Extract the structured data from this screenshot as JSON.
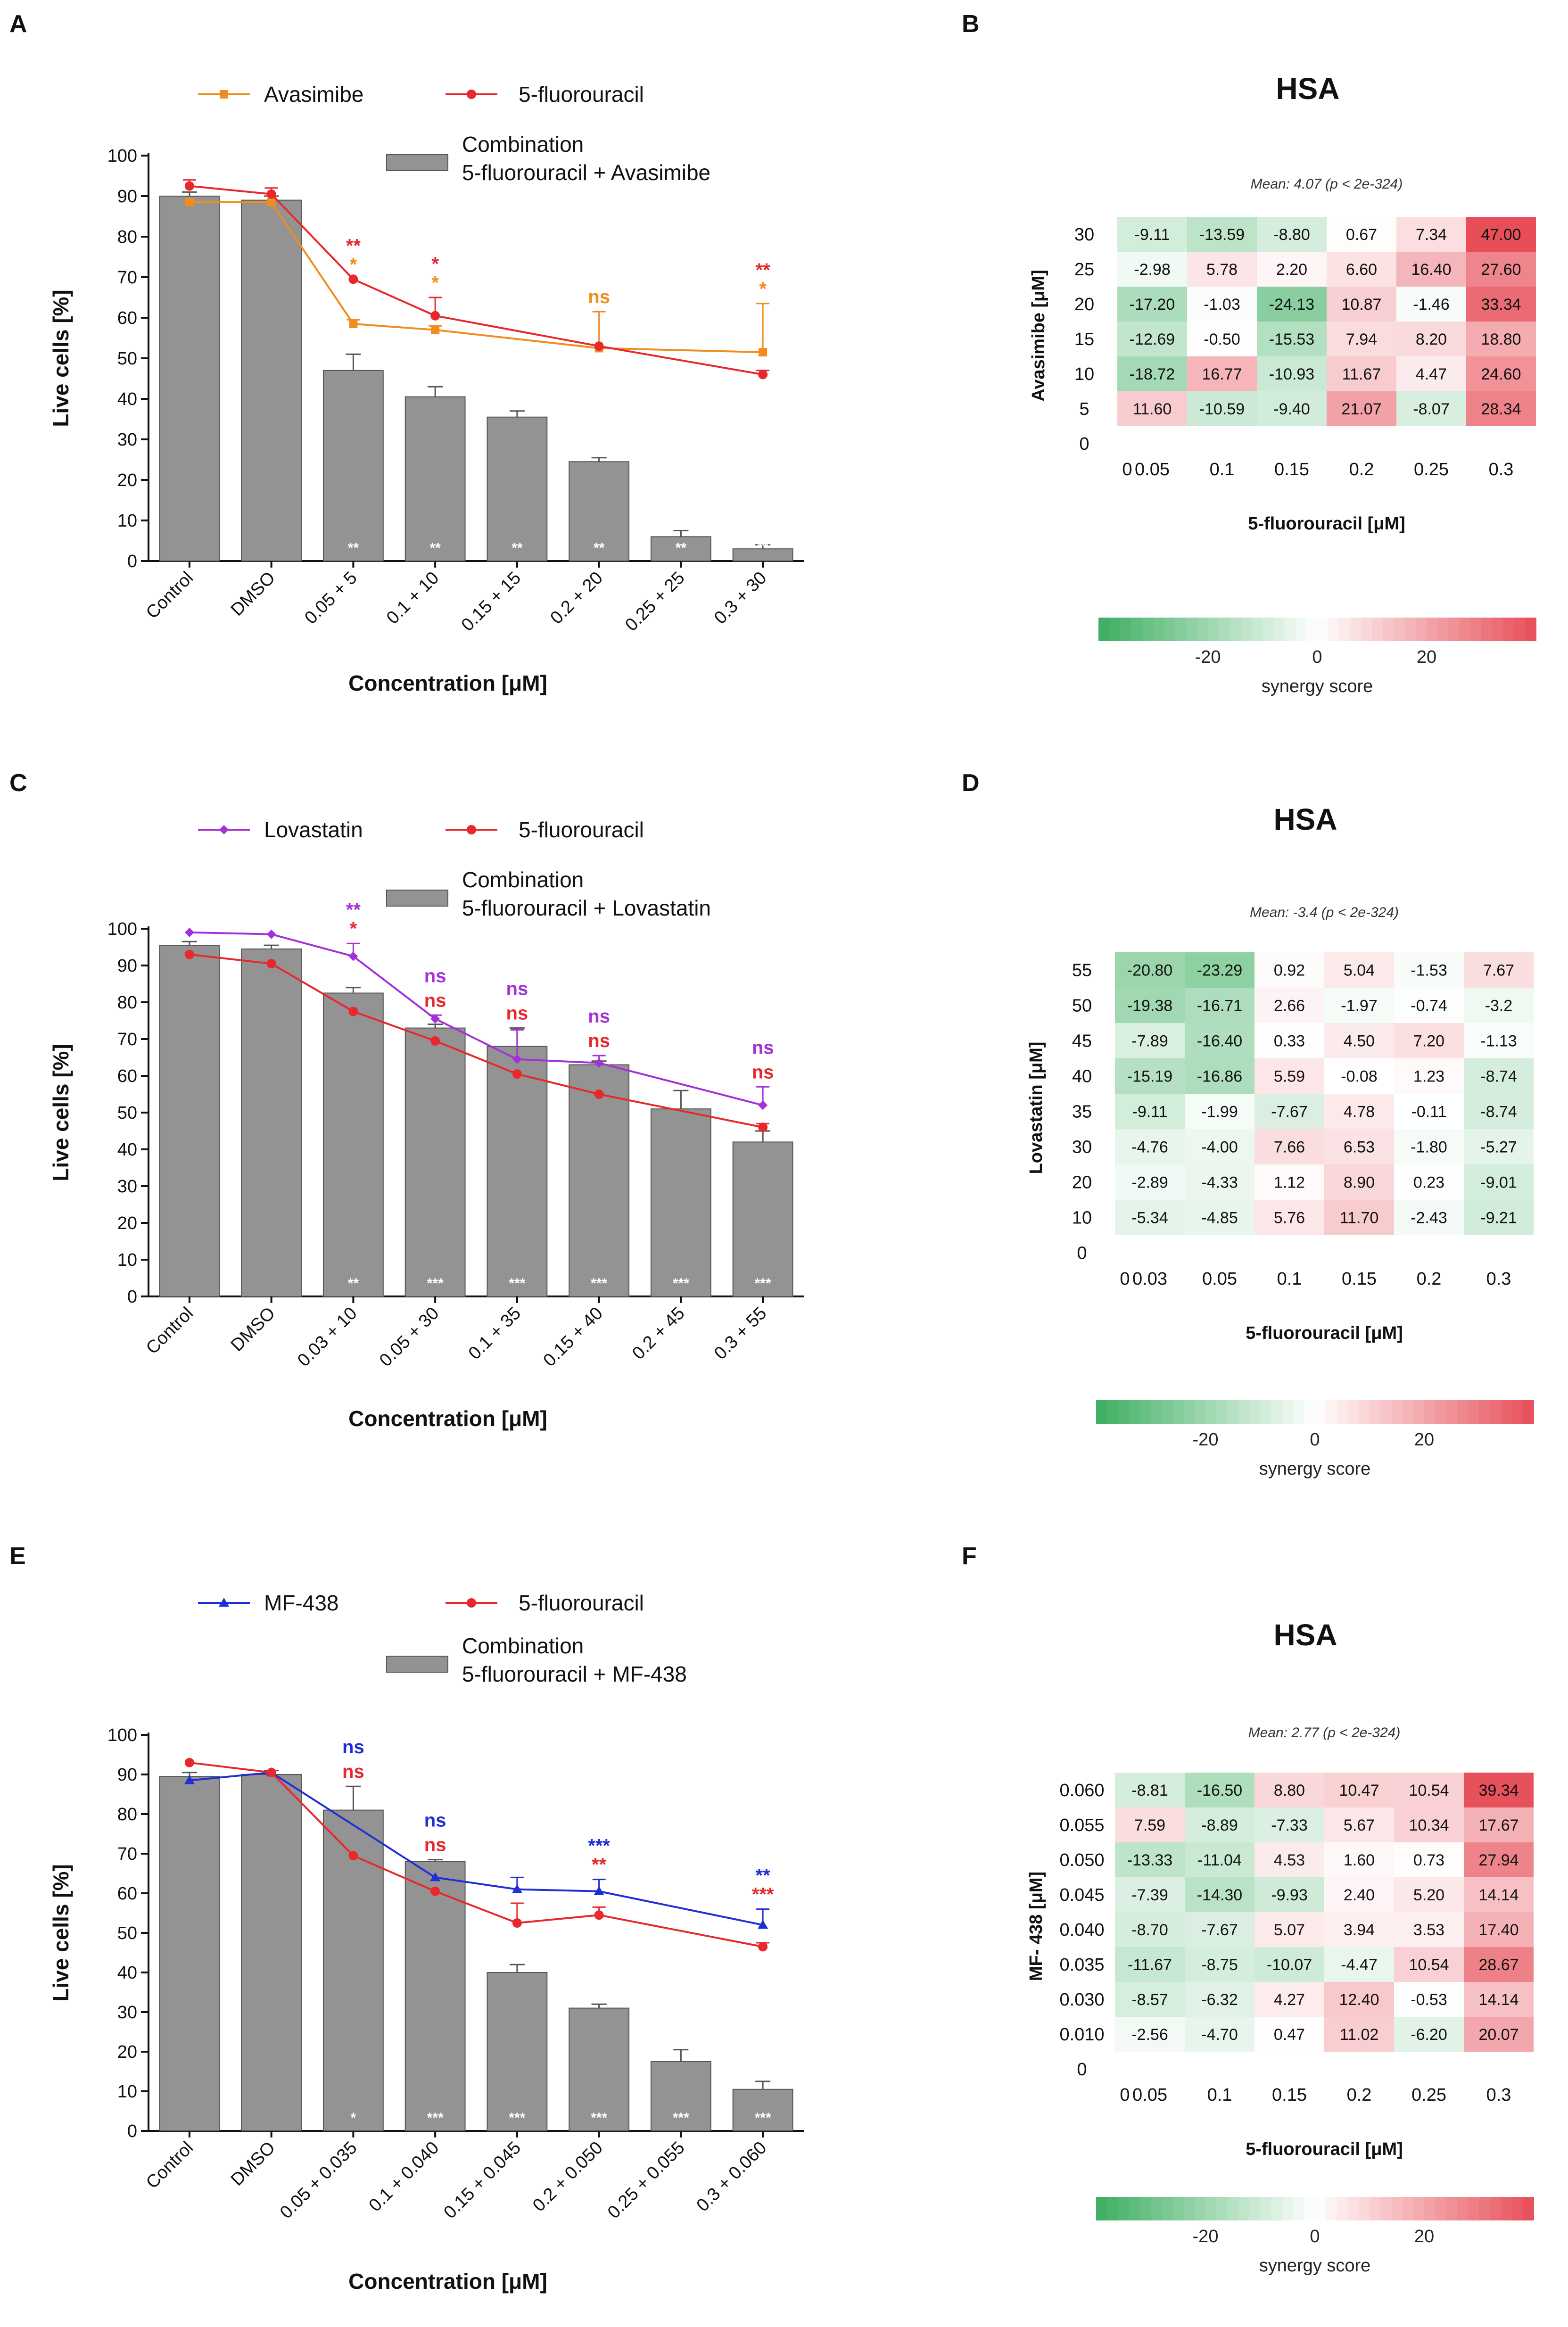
{
  "chart_data": [
    {
      "panel": "A",
      "type": "bar+line",
      "categories": [
        "Control",
        "DMSO",
        "0.05 + 5",
        "0.1 + 10",
        "0.15 + 15",
        "0.2 + 20",
        "0.25 + 25",
        "0.3 + 30"
      ],
      "bars": {
        "name": "Combination\n5-fluorouracil + Avasimibe",
        "values": [
          90,
          89,
          47,
          40.5,
          35.5,
          24.5,
          6,
          3
        ],
        "errors": [
          1,
          1,
          4,
          2.5,
          1.5,
          1,
          1.5,
          1
        ],
        "sig": [
          "",
          "",
          "**",
          "**",
          "**",
          "**",
          "**",
          "**"
        ]
      },
      "lines": [
        {
          "name": "Avasimibe",
          "color": "#f28c1e",
          "marker": "square",
          "values": [
            88.5,
            88.5,
            58.5,
            57,
            null,
            52.5,
            null,
            51.5
          ],
          "errors": [
            0,
            0,
            1,
            1,
            null,
            9,
            null,
            12
          ]
        },
        {
          "name": "5-fluorouracil",
          "color": "#e8282c",
          "marker": "circle",
          "values": [
            92.5,
            90.5,
            69.5,
            60.5,
            null,
            53,
            null,
            46
          ],
          "errors": [
            1.5,
            1.5,
            0,
            4.5,
            null,
            0,
            null,
            1
          ]
        }
      ],
      "annotations": [
        {
          "index": 2,
          "lines": [
            {
              "text": "**",
              "color": "#e8282c"
            },
            {
              "text": "*",
              "color": "#f28c1e"
            }
          ]
        },
        {
          "index": 3,
          "lines": [
            {
              "text": "*",
              "color": "#e8282c"
            },
            {
              "text": "*",
              "color": "#f28c1e"
            }
          ]
        },
        {
          "index": 5,
          "lines": [
            {
              "text": "ns",
              "color": "#f28c1e"
            }
          ]
        },
        {
          "index": 7,
          "lines": [
            {
              "text": "**",
              "color": "#e8282c"
            },
            {
              "text": "*",
              "color": "#f28c1e"
            }
          ]
        }
      ],
      "ylabel": "Live cells [%]",
      "xlabel": "Concentration [μM]",
      "ylim": [
        0,
        100
      ],
      "yticks": [
        0,
        10,
        20,
        30,
        40,
        50,
        60,
        70,
        80,
        90,
        100
      ]
    },
    {
      "panel": "B",
      "type": "heatmap",
      "title": "HSA",
      "subtitle": "Mean: 4.07 (p < 2e-324)",
      "xlabel": "5-fluorouracil [μM]",
      "ylabel": "Avasimibe [μM]",
      "x_ticks": [
        "0",
        "0.05",
        "0.1",
        "0.15",
        "0.2",
        "0.25",
        "0.3"
      ],
      "y_ticks": [
        "30",
        "25",
        "20",
        "15",
        "10",
        "5",
        "0"
      ],
      "cells": [
        [
          "-9.11",
          "-13.59",
          "-8.80",
          "0.67",
          "7.34",
          "47.00"
        ],
        [
          "-2.98",
          "5.78",
          "2.20",
          "6.60",
          "16.40",
          "27.60"
        ],
        [
          "-17.20",
          "-1.03",
          "-24.13",
          "10.87",
          "-1.46",
          "33.34"
        ],
        [
          "-12.69",
          "-0.50",
          "-15.53",
          "7.94",
          "8.20",
          "18.80"
        ],
        [
          "-18.72",
          "16.77",
          "-10.93",
          "11.67",
          "4.47",
          "24.60"
        ],
        [
          "11.60",
          "-10.59",
          "-9.40",
          "21.07",
          "-8.07",
          "28.34"
        ]
      ],
      "colorbar": {
        "ticks": [
          "-20",
          "0",
          "20"
        ],
        "label": "synergy score",
        "range": [
          -40,
          40
        ]
      }
    },
    {
      "panel": "C",
      "type": "bar+line",
      "categories": [
        "Control",
        "DMSO",
        "0.03 + 10",
        "0.05 + 30",
        "0.1 + 35",
        "0.15 + 40",
        "0.2 + 45",
        "0.3 + 55"
      ],
      "bars": {
        "name": "Combination\n5-fluorouracil + Lovastatin",
        "values": [
          95.5,
          94.5,
          82.5,
          73,
          68,
          63,
          51,
          42
        ],
        "errors": [
          1,
          1,
          1.5,
          1,
          5,
          1,
          5,
          3
        ],
        "sig": [
          "",
          "",
          "**",
          "***",
          "***",
          "***",
          "***",
          "***"
        ]
      },
      "lines": [
        {
          "name": "Lovastatin",
          "color": "#a431d6",
          "marker": "diamond",
          "values": [
            99,
            98.5,
            92.5,
            75.5,
            64.5,
            63.5,
            null,
            52
          ],
          "errors": [
            0,
            0,
            3.5,
            1,
            8,
            2,
            null,
            5
          ]
        },
        {
          "name": "5-fluorouracil",
          "color": "#e8282c",
          "marker": "circle",
          "values": [
            93,
            90.5,
            77.5,
            69.5,
            60.5,
            55,
            null,
            46
          ],
          "errors": [
            0,
            0,
            0,
            0,
            0,
            0,
            null,
            1
          ]
        }
      ],
      "annotations": [
        {
          "index": 2,
          "lines": [
            {
              "text": "**",
              "color": "#a431d6"
            },
            {
              "text": "*",
              "color": "#e8282c"
            }
          ]
        },
        {
          "index": 3,
          "lines": [
            {
              "text": "ns",
              "color": "#a431d6"
            },
            {
              "text": "ns",
              "color": "#e8282c"
            }
          ]
        },
        {
          "index": 4,
          "lines": [
            {
              "text": "ns",
              "color": "#a431d6"
            },
            {
              "text": "ns",
              "color": "#e8282c"
            }
          ]
        },
        {
          "index": 5,
          "lines": [
            {
              "text": "ns",
              "color": "#a431d6"
            },
            {
              "text": "ns",
              "color": "#e8282c"
            }
          ]
        },
        {
          "index": 7,
          "lines": [
            {
              "text": "ns",
              "color": "#a431d6"
            },
            {
              "text": "ns",
              "color": "#e8282c"
            }
          ]
        }
      ],
      "ylabel": "Live cells [%]",
      "xlabel": "Concentration [μM]",
      "ylim": [
        0,
        100
      ],
      "yticks": [
        0,
        10,
        20,
        30,
        40,
        50,
        60,
        70,
        80,
        90,
        100
      ]
    },
    {
      "panel": "D",
      "type": "heatmap",
      "title": "HSA",
      "subtitle": "Mean: -3.4 (p < 2e-324)",
      "xlabel": "5-fluorouracil [μM]",
      "ylabel": "Lovastatin [μM]",
      "x_ticks": [
        "0",
        "0.03",
        "0.05",
        "0.1",
        "0.15",
        "0.2",
        "0.3"
      ],
      "y_ticks": [
        "55",
        "50",
        "45",
        "40",
        "35",
        "30",
        "20",
        "10",
        "0"
      ],
      "cells": [
        [
          "-20.80",
          "-23.29",
          "0.92",
          "5.04",
          "-1.53",
          "7.67"
        ],
        [
          "-19.38",
          "-16.71",
          "2.66",
          "-1.97",
          "-0.74",
          "-3.2"
        ],
        [
          "-7.89",
          "-16.40",
          "0.33",
          "4.50",
          "7.20",
          "-1.13"
        ],
        [
          "-15.19",
          "-16.86",
          "5.59",
          "-0.08",
          "1.23",
          "-8.74"
        ],
        [
          "-9.11",
          "-1.99",
          "-7.67",
          "4.78",
          "-0.11",
          "-8.74"
        ],
        [
          "-4.76",
          "-4.00",
          "7.66",
          "6.53",
          "-1.80",
          "-5.27"
        ],
        [
          "-2.89",
          "-4.33",
          "1.12",
          "8.90",
          "0.23",
          "-9.01"
        ],
        [
          "-5.34",
          "-4.85",
          "5.76",
          "11.70",
          "-2.43",
          "-9.21"
        ]
      ],
      "colorbar": {
        "ticks": [
          "-20",
          "0",
          "20"
        ],
        "label": "synergy score",
        "range": [
          -40,
          40
        ]
      }
    },
    {
      "panel": "E",
      "type": "bar+line",
      "categories": [
        "Control",
        "DMSO",
        "0.05 + 0.035",
        "0.1 + 0.040",
        "0.15 + 0.045",
        "0.2 + 0.050",
        "0.25 + 0.055",
        "0.3 + 0.060"
      ],
      "bars": {
        "name": "Combination\n5-fluorouracil + MF-438",
        "values": [
          89.5,
          90,
          81,
          68,
          40,
          31,
          17.5,
          10.5
        ],
        "errors": [
          1,
          1,
          6,
          0.5,
          2,
          1,
          3,
          2
        ],
        "sig": [
          "",
          "",
          "*",
          "***",
          "***",
          "***",
          "***",
          "***"
        ]
      },
      "lines": [
        {
          "name": "MF-438",
          "color": "#1f2fd6",
          "marker": "triangle",
          "values": [
            88.5,
            90.5,
            null,
            64,
            61,
            60.5,
            null,
            52
          ],
          "errors": [
            0,
            0,
            null,
            0,
            3,
            3,
            null,
            4
          ]
        },
        {
          "name": "5-fluorouracil",
          "color": "#e8282c",
          "marker": "circle",
          "values": [
            93,
            90.5,
            69.5,
            60.5,
            52.5,
            54.5,
            null,
            46.5
          ],
          "errors": [
            0,
            0,
            0,
            0,
            5,
            2,
            null,
            1
          ]
        }
      ],
      "annotations": [
        {
          "index": 2,
          "lines": [
            {
              "text": "ns",
              "color": "#1f2fd6"
            },
            {
              "text": "ns",
              "color": "#e8282c"
            }
          ]
        },
        {
          "index": 3,
          "lines": [
            {
              "text": "ns",
              "color": "#1f2fd6"
            },
            {
              "text": "ns",
              "color": "#e8282c"
            }
          ]
        },
        {
          "index": 5,
          "lines": [
            {
              "text": "***",
              "color": "#1f2fd6"
            },
            {
              "text": "**",
              "color": "#e8282c"
            }
          ]
        },
        {
          "index": 7,
          "lines": [
            {
              "text": "**",
              "color": "#1f2fd6"
            },
            {
              "text": "***",
              "color": "#e8282c"
            }
          ]
        }
      ],
      "ylabel": "Live cells [%]",
      "xlabel": "Concentration [μM]",
      "ylim": [
        0,
        100
      ],
      "yticks": [
        0,
        10,
        20,
        30,
        40,
        50,
        60,
        70,
        80,
        90,
        100
      ]
    },
    {
      "panel": "F",
      "type": "heatmap",
      "title": "HSA",
      "subtitle": "Mean: 2.77 (p < 2e-324)",
      "xlabel": "5-fluorouracil [μM]",
      "ylabel": "MF- 438 [μM]",
      "x_ticks": [
        "0",
        "0.05",
        "0.1",
        "0.15",
        "0.2",
        "0.25",
        "0.3"
      ],
      "y_ticks": [
        "0.060",
        "0.055",
        "0.050",
        "0.045",
        "0.040",
        "0.035",
        "0.030",
        "0.010",
        "0"
      ],
      "cells": [
        [
          "-8.81",
          "-16.50",
          "8.80",
          "10.47",
          "10.54",
          "39.34"
        ],
        [
          "7.59",
          "-8.89",
          "-7.33",
          "5.67",
          "10.34",
          "17.67"
        ],
        [
          "-13.33",
          "-11.04",
          "4.53",
          "1.60",
          "0.73",
          "27.94"
        ],
        [
          "-7.39",
          "-14.30",
          "-9.93",
          "2.40",
          "5.20",
          "14.14"
        ],
        [
          "-8.70",
          "-7.67",
          "5.07",
          "3.94",
          "3.53",
          "17.40"
        ],
        [
          "-11.67",
          "-8.75",
          "-10.07",
          "-4.47",
          "10.54",
          "28.67"
        ],
        [
          "-8.57",
          "-6.32",
          "4.27",
          "12.40",
          "-0.53",
          "14.14"
        ],
        [
          "-2.56",
          "-4.70",
          "0.47",
          "11.02",
          "-6.20",
          "20.07"
        ]
      ],
      "colorbar": {
        "ticks": [
          "-20",
          "0",
          "20"
        ],
        "label": "synergy score",
        "range": [
          -40,
          40
        ]
      }
    }
  ]
}
